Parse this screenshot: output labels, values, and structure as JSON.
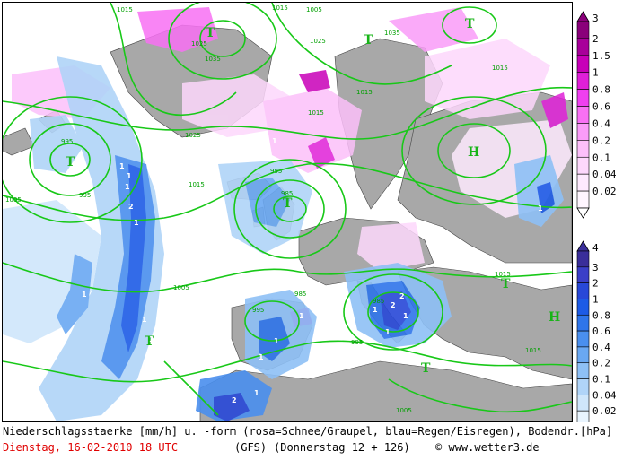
{
  "title_line": "Niederschlagsstaerke [mm/h] u. -form (rosa=Schnee/Graupel, blau=Regen/Eisregen), Bodendr.[hPa]",
  "run_date": "Dienstag, 16-02-2010  18 UTC",
  "model": "(GFS)",
  "lead": "(Donnerstag 12 + 126)",
  "credit": "www.wetter3.de",
  "credit_symbol": "©",
  "legend_snow": {
    "labels": [
      "3",
      "2",
      "1.5",
      "1",
      "0.8",
      "0.6",
      "0.4",
      "0.2",
      "0.1",
      "0.04",
      "0.02"
    ],
    "colors": [
      "#8a007a",
      "#a8009a",
      "#c800b8",
      "#e020d8",
      "#f040f0",
      "#f870f4",
      "#fa9cf8",
      "#fcc0fa",
      "#fdd8fc",
      "#feeafe",
      "#fff6ff"
    ]
  },
  "legend_rain": {
    "labels": [
      "4",
      "3",
      "2",
      "1",
      "0.8",
      "0.6",
      "0.4",
      "0.2",
      "0.1",
      "0.04",
      "0.02"
    ],
    "colors": [
      "#3a2e9a",
      "#3b3fc8",
      "#2848d8",
      "#1d5be6",
      "#2f75ea",
      "#4a8fee",
      "#6aa8f2",
      "#8ec0f6",
      "#b0d4f8",
      "#cfe6fb",
      "#e8f4fe"
    ]
  },
  "pressure_labels": [
    "1015",
    "1025",
    "1035",
    "1015",
    "1025",
    "1035",
    "1015",
    "995",
    "1015",
    "995",
    "985",
    "995",
    "1005",
    "1025",
    "1015",
    "1005",
    "995",
    "985",
    "1015",
    "985",
    "995",
    "1005",
    "1015",
    "1015",
    "1005"
  ],
  "pressure_centers": [
    "T",
    "T",
    "T",
    "T",
    "H",
    "T",
    "T",
    "T",
    "T",
    "H"
  ],
  "rain_values": [
    "1",
    "1",
    "1",
    "2",
    "1",
    "1",
    "1",
    "1",
    "1",
    "1",
    "1",
    "2",
    "1",
    "1",
    "2",
    "2",
    "1",
    "1"
  ],
  "snow_values": [
    "1",
    "1"
  ],
  "colors": {
    "isobar": "#18c818",
    "land": "#a8a8a8",
    "sea": "#ffffff",
    "date_text": "#e00000"
  }
}
